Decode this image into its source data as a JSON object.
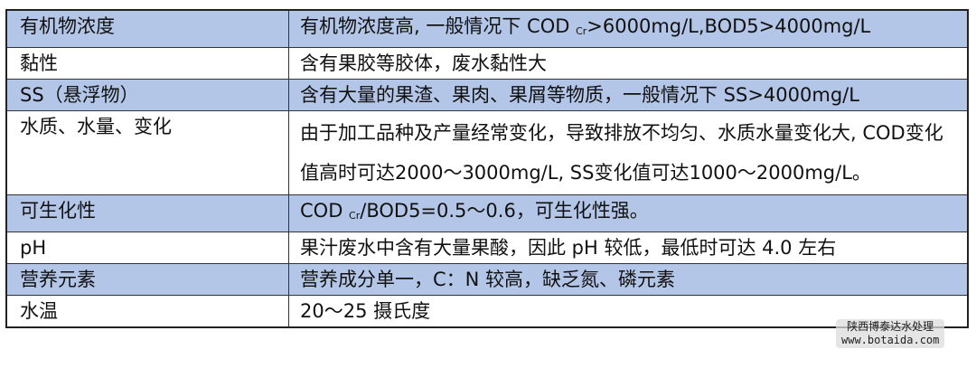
{
  "rows": [
    {
      "label": "有机物浓度",
      "pre": "有机物浓度高, 一般情况下 COD ",
      "sub": "Cr",
      "post": ">6000mg/L,BOD5>4000mg/L",
      "highlight": true
    },
    {
      "label": "黏性",
      "pre": "含有果胶等胶体，废水黏性大",
      "highlight": false
    },
    {
      "label": "SS（悬浮物）",
      "pre": "含有大量的果渣、果肉、果屑等物质，一般情况下 SS>4000mg/L",
      "highlight": true
    },
    {
      "label": "水质、水量、变化",
      "pre": "由于加工品种及产量经常变化，导致排放不均匀、水质水量变化大, COD变化值高时可达2000～3000mg/L, SS变化值可达1000～2000mg/L。",
      "highlight": false
    },
    {
      "label": "可生化性",
      "pre": "COD ",
      "sub": "Cr",
      "post": "/BOD5=0.5～0.6，可生化性强。",
      "highlight": true
    },
    {
      "label": "pH",
      "pre": "果汁废水中含有大量果酸，因此 pH 较低，最低时可达 4.0 左右",
      "highlight": false
    },
    {
      "label": "营养元素",
      "pre": "营养成分单一，C：N 较高，缺乏氮、磷元素",
      "highlight": true
    },
    {
      "label": "水温",
      "pre": "20～25 摄氏度",
      "highlight": false
    }
  ],
  "watermark": {
    "line1": "陕西博泰达水处理",
    "line2": "www.botaida.com"
  },
  "colors": {
    "highlight": "#b4c6e7",
    "border": "#333333"
  }
}
